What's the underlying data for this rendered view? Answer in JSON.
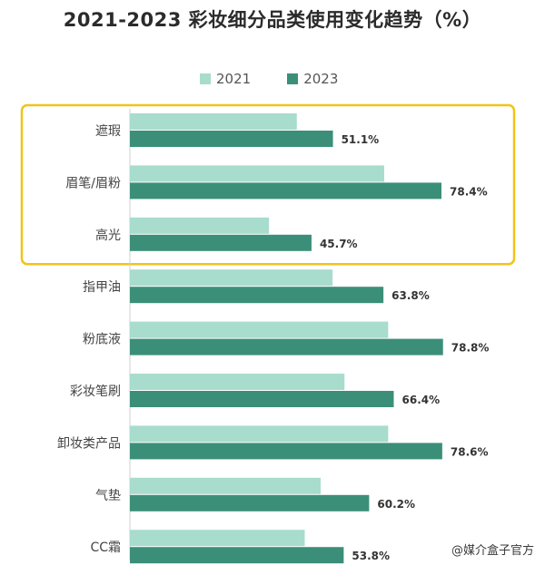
{
  "colors": {
    "series_2021": "#a8dccd",
    "series_2023": "#3b8f78",
    "highlight_border": "#f0c419",
    "axis": "#cfcfcf"
  },
  "watermark": "@媒介盒子官方",
  "chart_data": {
    "type": "bar",
    "orientation": "horizontal",
    "title": "2021-2023 彩妆细分品类使用变化趋势（%）",
    "categories": [
      "遮瑕",
      "眉笔/眉粉",
      "高光",
      "指甲油",
      "粉底液",
      "彩妆笔刷",
      "卸妆类产品",
      "气垫",
      "CC霜"
    ],
    "series": [
      {
        "name": "2021",
        "values": [
          42,
          64,
          35,
          51,
          65,
          54,
          65,
          48,
          44
        ]
      },
      {
        "name": "2023",
        "values": [
          51.1,
          78.4,
          45.7,
          63.8,
          78.8,
          66.4,
          78.6,
          60.2,
          53.8
        ]
      }
    ],
    "data_labels_2023": [
      "51.1%",
      "78.4%",
      "45.7%",
      "63.8%",
      "78.8%",
      "66.4%",
      "78.6%",
      "60.2%",
      "53.8%"
    ],
    "xlim": [
      0,
      80
    ],
    "legend_position": "top",
    "highlighted_categories": [
      "遮瑕",
      "眉笔/眉粉",
      "高光"
    ]
  }
}
